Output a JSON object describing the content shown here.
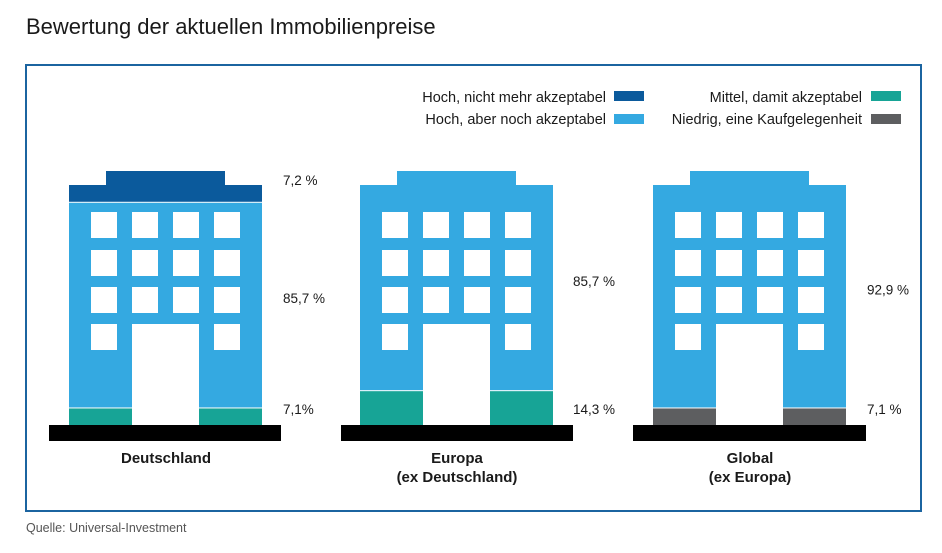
{
  "page": {
    "title": "Bewertung der aktuellen Immobilienpreise",
    "source": "Quelle: Universal-Investment"
  },
  "colors": {
    "hoch_nicht_akzeptabel": "#0b5a9c",
    "hoch_akzeptabel": "#34a9e1",
    "mittel": "#17a496",
    "niedrig": "#5d5e60",
    "base": "#000000",
    "window": "#ffffff",
    "frame": "#1b64a0"
  },
  "chart_data": {
    "type": "bar",
    "title": "Bewertung der aktuellen Immobilienpreise",
    "stacked": true,
    "unit": "%",
    "legend_position": "top-right",
    "categories": [
      [
        "Deutschland"
      ],
      [
        "Europa",
        "(ex Deutschland)"
      ],
      [
        "Global",
        "(ex Europa)"
      ]
    ],
    "series": [
      {
        "key": "niedrig",
        "name": "Niedrig, eine Kaufgelegenheit",
        "values": [
          0,
          0,
          7.1
        ]
      },
      {
        "key": "mittel",
        "name": "Mittel, damit akzeptabel",
        "values": [
          7.1,
          14.3,
          0
        ]
      },
      {
        "key": "hoch_akzeptabel",
        "name": "Hoch, aber noch akzeptabel",
        "values": [
          85.7,
          85.7,
          92.9
        ]
      },
      {
        "key": "hoch_nicht_akzeptabel",
        "name": "Hoch, nicht mehr akzeptabel",
        "values": [
          7.2,
          0,
          0
        ]
      }
    ],
    "data_labels": [
      [
        "7,2 %",
        "85,7 %",
        "7,1%"
      ],
      [
        "85,7 %",
        "14,3 %"
      ],
      [
        "92,9 %",
        "7,1 %"
      ]
    ],
    "legend": [
      {
        "key": "hoch_nicht_akzeptabel",
        "label": "Hoch, nicht mehr akzeptabel"
      },
      {
        "key": "hoch_akzeptabel",
        "label": "Hoch, aber noch akzeptabel"
      },
      {
        "key": "mittel",
        "label": "Mittel, damit akzeptabel"
      },
      {
        "key": "niedrig",
        "label": "Niedrig, eine Kaufgelegenheit"
      }
    ]
  }
}
